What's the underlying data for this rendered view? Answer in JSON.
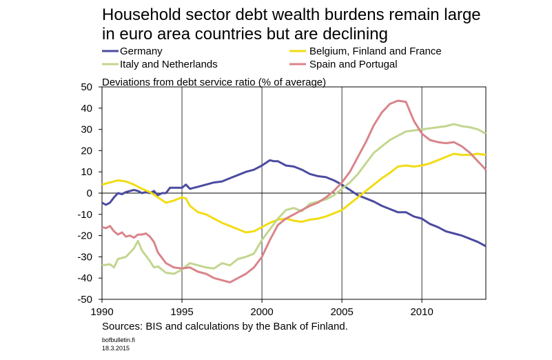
{
  "chart_data": {
    "type": "line",
    "title_lines": [
      "Household sector debt wealth burdens remain large",
      "in euro area countries but are declining"
    ],
    "ylabel": "Deviations from debt service ratio (% of average)",
    "xlabel": "",
    "xlim": [
      1990,
      2014
    ],
    "ylim": [
      -50,
      50
    ],
    "x_ticks": [
      1990,
      1995,
      2000,
      2005,
      2010
    ],
    "y_ticks": [
      -50,
      -40,
      -30,
      -20,
      -10,
      0,
      10,
      20,
      30,
      40,
      50
    ],
    "grid": "vertical lines at x tick positions",
    "legend_position": "top, two columns",
    "series": [
      {
        "name": "Germany",
        "color": "#4B4BA0",
        "x": [
          1990.0,
          1990.25,
          1990.5,
          1990.75,
          1991.0,
          1991.25,
          1991.5,
          1991.75,
          1992.0,
          1992.25,
          1992.5,
          1992.75,
          1993.0,
          1993.25,
          1993.5,
          1993.75,
          1994.0,
          1994.25,
          1994.5,
          1994.75,
          1995.0,
          1995.25,
          1995.5,
          1995.75,
          1996.0,
          1996.5,
          1997.0,
          1997.5,
          1998.0,
          1998.5,
          1999.0,
          1999.5,
          2000.0,
          2000.5,
          2000.75,
          2001.0,
          2001.5,
          2002.0,
          2002.5,
          2003.0,
          2003.5,
          2004.0,
          2004.5,
          2005.0,
          2005.5,
          2006.0,
          2006.5,
          2007.0,
          2007.5,
          2008.0,
          2008.5,
          2009.0,
          2009.5,
          2010.0,
          2010.5,
          2011.0,
          2011.5,
          2012.0,
          2012.5,
          2013.0,
          2013.5,
          2014.0
        ],
        "y": [
          -4.5,
          -5.5,
          -4.5,
          -2,
          0,
          -0.5,
          0.5,
          1,
          1.5,
          1,
          0,
          0.5,
          0,
          1,
          -1,
          0,
          0,
          2.5,
          2.5,
          2.5,
          2.5,
          4,
          2,
          2.5,
          3,
          4,
          5,
          5.5,
          7,
          8.5,
          10,
          11,
          13,
          15.5,
          15,
          15,
          13,
          12.5,
          11,
          9,
          8,
          7.5,
          6,
          4,
          1.5,
          -1,
          -2.5,
          -4,
          -6,
          -7.5,
          -9,
          -9,
          -11,
          -12,
          -14.5,
          -16,
          -18,
          -19,
          -20,
          -21.5,
          -23,
          -25
        ]
      },
      {
        "name": "Belgium, Finland and France",
        "color": "#F2DC14",
        "x": [
          1990.0,
          1990.5,
          1991.0,
          1991.5,
          1992.0,
          1992.5,
          1993.0,
          1993.5,
          1994.0,
          1994.5,
          1995.0,
          1995.25,
          1995.5,
          1996.0,
          1996.5,
          1997.0,
          1997.5,
          1998.0,
          1998.5,
          1999.0,
          1999.5,
          2000.0,
          2000.5,
          2001.0,
          2001.5,
          2002.0,
          2002.5,
          2003.0,
          2003.5,
          2004.0,
          2004.5,
          2005.0,
          2005.5,
          2006.0,
          2006.5,
          2007.0,
          2007.5,
          2008.0,
          2008.5,
          2009.0,
          2009.5,
          2010.0,
          2010.5,
          2011.0,
          2011.5,
          2012.0,
          2012.5,
          2013.0,
          2013.5,
          2014.0
        ],
        "y": [
          4,
          5,
          6,
          5.5,
          4,
          2,
          0.5,
          -2,
          -4.5,
          -3.5,
          -2,
          -2.5,
          -6,
          -9,
          -10,
          -12,
          -14,
          -15.5,
          -17,
          -18.5,
          -18,
          -16,
          -14,
          -12.5,
          -12,
          -13,
          -13.5,
          -12.5,
          -12,
          -11,
          -9.5,
          -8,
          -5,
          -2,
          1,
          4,
          7,
          9.5,
          12.5,
          13,
          12.5,
          13,
          14,
          15.5,
          17,
          18.5,
          18,
          18,
          18.5,
          18
        ]
      },
      {
        "name": "Italy and Netherlands",
        "color": "#C2D68E",
        "x": [
          1990.0,
          1990.5,
          1990.75,
          1991.0,
          1991.5,
          1992.0,
          1992.25,
          1992.5,
          1993.0,
          1993.25,
          1993.5,
          1994.0,
          1994.5,
          1995.0,
          1995.5,
          1996.0,
          1996.5,
          1997.0,
          1997.5,
          1998.0,
          1998.5,
          1999.0,
          1999.5,
          2000.0,
          2000.5,
          2001.0,
          2001.5,
          2002.0,
          2002.5,
          2003.0,
          2003.5,
          2004.0,
          2004.5,
          2005.0,
          2005.5,
          2006.0,
          2006.5,
          2007.0,
          2007.5,
          2008.0,
          2008.5,
          2009.0,
          2009.5,
          2010.0,
          2010.5,
          2011.0,
          2011.5,
          2012.0,
          2012.5,
          2013.0,
          2013.5,
          2014.0
        ],
        "y": [
          -34,
          -33.5,
          -35,
          -31,
          -30,
          -26,
          -22.5,
          -27,
          -32,
          -35,
          -34.5,
          -37.5,
          -38,
          -36,
          -33,
          -34,
          -35,
          -35.5,
          -33,
          -34,
          -31,
          -30,
          -28.5,
          -22,
          -17,
          -12,
          -8,
          -7,
          -8.5,
          -5,
          -4,
          -3,
          -1,
          2,
          5,
          9,
          14,
          19,
          22,
          25,
          27,
          29,
          29.5,
          30,
          30.5,
          31,
          31.5,
          32.5,
          31.5,
          31,
          30,
          28
        ]
      },
      {
        "name": "Spain and Portugal",
        "color": "#D9848A",
        "x": [
          1990.0,
          1990.25,
          1990.5,
          1990.75,
          1991.0,
          1991.25,
          1991.5,
          1991.75,
          1992.0,
          1992.25,
          1992.5,
          1992.75,
          1993.0,
          1993.25,
          1993.5,
          1994.0,
          1994.5,
          1995.0,
          1995.5,
          1996.0,
          1996.5,
          1997.0,
          1997.5,
          1998.0,
          1998.5,
          1999.0,
          1999.5,
          2000.0,
          2000.5,
          2001.0,
          2001.5,
          2002.0,
          2002.5,
          2003.0,
          2003.5,
          2004.0,
          2004.5,
          2005.0,
          2005.5,
          2006.0,
          2006.5,
          2007.0,
          2007.5,
          2008.0,
          2008.5,
          2009.0,
          2009.5,
          2010.0,
          2010.5,
          2011.0,
          2011.5,
          2012.0,
          2012.5,
          2013.0,
          2013.5,
          2014.0
        ],
        "y": [
          -16,
          -16.5,
          -15.5,
          -18,
          -19.5,
          -18.5,
          -20.5,
          -20,
          -21,
          -19.5,
          -19.5,
          -19,
          -20.5,
          -23,
          -28,
          -33,
          -35,
          -35.5,
          -35,
          -37,
          -38,
          -40,
          -41,
          -42,
          -40,
          -38,
          -35,
          -30,
          -22,
          -15,
          -12,
          -10,
          -8,
          -6,
          -4.5,
          -2,
          1,
          5,
          10,
          17,
          24,
          32,
          38,
          42,
          43.5,
          43,
          34,
          28,
          25,
          24,
          23.5,
          24,
          22,
          19,
          15,
          11
        ]
      }
    ]
  },
  "sources": "Sources: BIS and calculations by the Bank of Finland.",
  "footer": {
    "site": "bofbulletin.fi",
    "date": "18.3.2015"
  }
}
